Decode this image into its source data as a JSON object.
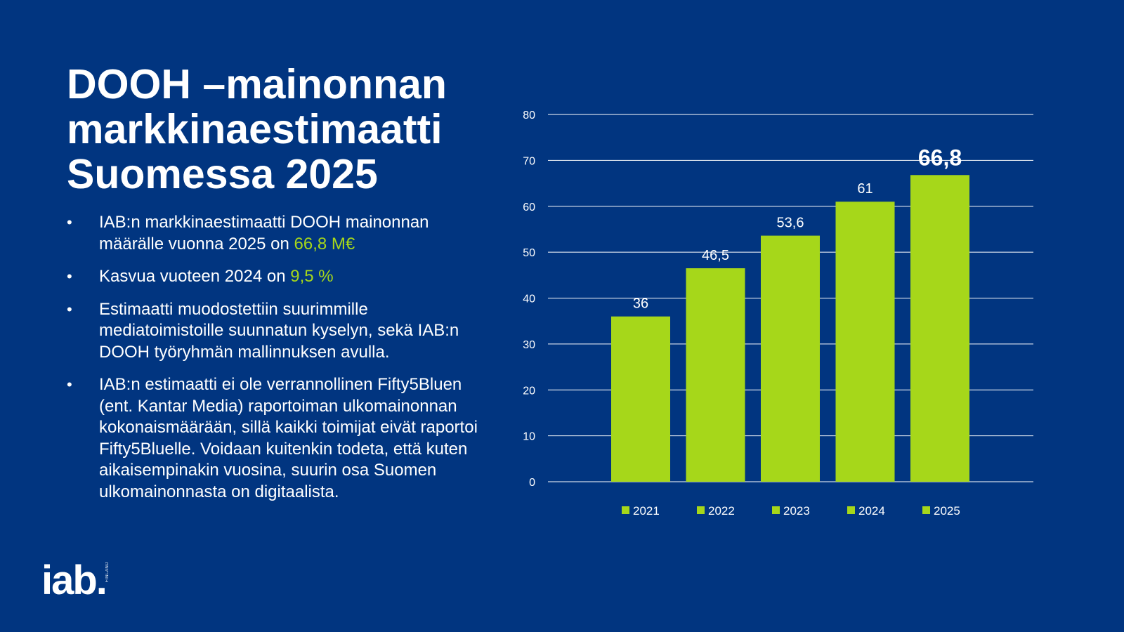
{
  "title_lines": [
    "DOOH –mainonnan",
    "markkinaestimaatti",
    "Suomessa 2025"
  ],
  "bullets": [
    {
      "pre": "IAB:n markkinaestimaatti DOOH mainonnan määrälle vuonna 2025 on ",
      "highlight": "66,8 M€",
      "post": ""
    },
    {
      "pre": "Kasvua vuoteen 2024 on ",
      "highlight": "9,5 %",
      "post": ""
    },
    {
      "pre": "Estimaatti muodostettiin suurimmille mediatoimistoille suunnatun kyselyn, sekä IAB:n DOOH työryhmän mallinnuksen avulla.",
      "highlight": "",
      "post": ""
    },
    {
      "pre": "IAB:n estimaatti ei ole verrannollinen Fifty5Bluen (ent. Kantar Media) raportoiman ulkomainonnan kokonaismäärään, sillä kaikki toimijat eivät raportoi Fifty5Bluelle. Voidaan kuitenkin todeta, että kuten aikaisempinakin vuosina, suurin osa Suomen ulkomainonnasta on digitaalista.",
      "highlight": "",
      "post": ""
    }
  ],
  "bullet_char": "•",
  "logo": {
    "text": "iab.",
    "sub": "FINLAND"
  },
  "colors": {
    "background": "#013580",
    "bar": "#a6d71a",
    "highlight": "#a6d71a",
    "grid": "#ffffff"
  },
  "chart_data": {
    "type": "bar",
    "categories": [
      "2021",
      "2022",
      "2023",
      "2024",
      "2025"
    ],
    "values": [
      36,
      46.5,
      53.6,
      61,
      66.8
    ],
    "value_labels": [
      "36",
      "46,5",
      "53,6",
      "61",
      "66,8"
    ],
    "emphasized_index": 4,
    "ylim": [
      0,
      80
    ],
    "yticks": [
      "0",
      "10",
      "20",
      "30",
      "40",
      "50",
      "60",
      "70",
      "80"
    ],
    "grid": true,
    "legend": "bottom",
    "legend_entries": [
      "2021",
      "2022",
      "2023",
      "2024",
      "2025"
    ],
    "title": "",
    "xlabel": "",
    "ylabel": ""
  }
}
